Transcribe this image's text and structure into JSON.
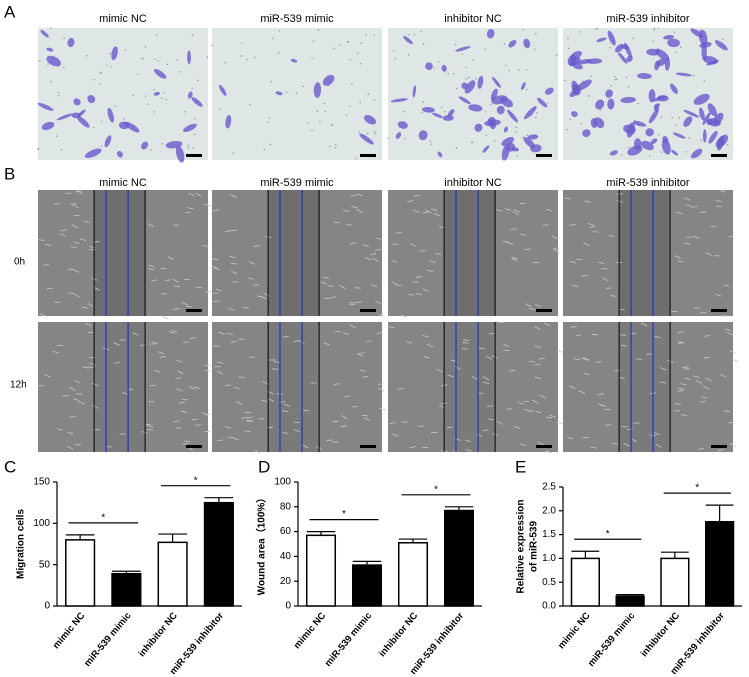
{
  "panel_a": {
    "label": "A",
    "columns": [
      "mimic NC",
      "miR-539 mimic",
      "inhibitor NC",
      "miR-539 inhibitor"
    ]
  },
  "panel_b": {
    "label": "B",
    "columns": [
      "mimic NC",
      "miR-539 mimic",
      "inhibitor NC",
      "miR-539 inhibitor"
    ],
    "rows": [
      "0h",
      "12h"
    ]
  },
  "chart_data": [
    {
      "type": "bar",
      "panel_label": "C",
      "y_label": "Migration cells",
      "categories": [
        "mimic NC",
        "miR-539 mimic",
        "inhibitor NC",
        "miR-539 inhibitor"
      ],
      "values": [
        80,
        39,
        77,
        125
      ],
      "errors": [
        6,
        3,
        10,
        6
      ],
      "colors": [
        "#ffffff",
        "#000000",
        "#ffffff",
        "#000000"
      ],
      "ylim": [
        0,
        150
      ],
      "yticks": [
        0,
        50,
        100,
        150
      ],
      "significance": [
        "*",
        "*"
      ]
    },
    {
      "type": "bar",
      "panel_label": "D",
      "y_label": "Wound area（100%）",
      "categories": [
        "mimic NC",
        "miR-539 mimic",
        "inhibitor NC",
        "miR-539 inhibitor"
      ],
      "values": [
        57,
        33,
        51,
        77
      ],
      "errors": [
        3,
        3,
        3,
        3
      ],
      "colors": [
        "#ffffff",
        "#000000",
        "#ffffff",
        "#000000"
      ],
      "ylim": [
        0,
        100
      ],
      "yticks": [
        0,
        20,
        40,
        60,
        80,
        100
      ],
      "significance": [
        "*",
        "*"
      ]
    },
    {
      "type": "bar",
      "panel_label": "E",
      "y_label": [
        "Relative expression",
        "of miR-539"
      ],
      "categories": [
        "mimic NC",
        "miR-539 mimic",
        "inhibitor NC",
        "miR-539 inhibitor"
      ],
      "values": [
        1.0,
        0.21,
        1.0,
        1.77
      ],
      "errors": [
        0.15,
        0.03,
        0.13,
        0.35
      ],
      "colors": [
        "#ffffff",
        "#000000",
        "#ffffff",
        "#000000"
      ],
      "ylim": [
        0,
        2.5
      ],
      "yticks": [
        {
          "value": 0,
          "label": "0.0"
        },
        0.5,
        {
          "value": 1,
          "label": "1.0"
        },
        1.5,
        {
          "value": 2,
          "label": "2.0"
        },
        2.5
      ],
      "significance": [
        "*",
        "*"
      ]
    }
  ]
}
